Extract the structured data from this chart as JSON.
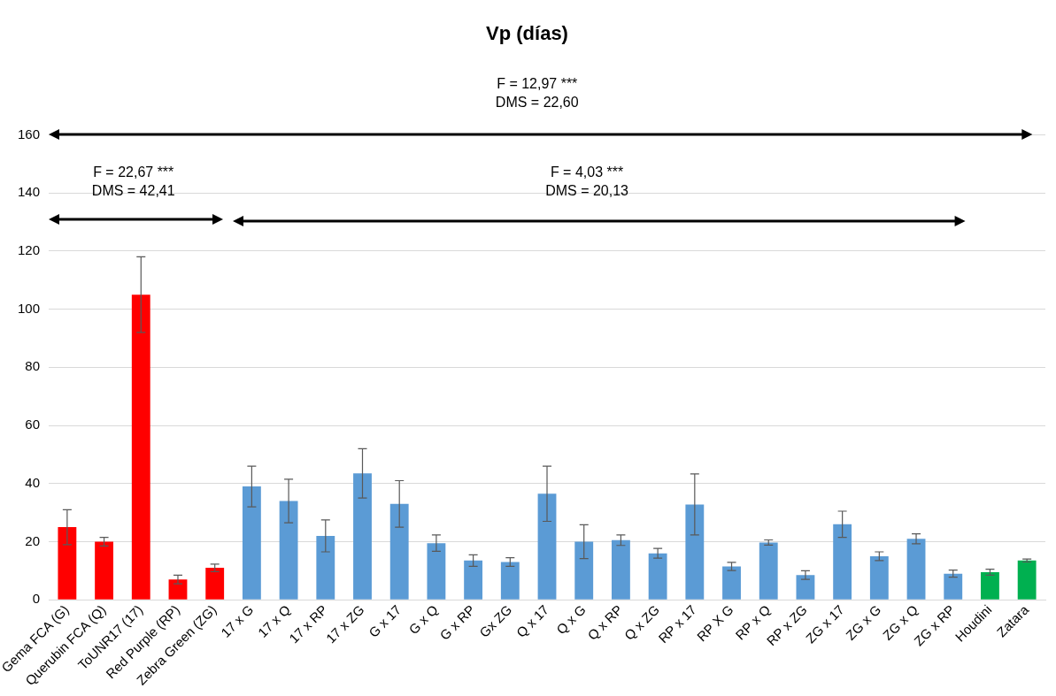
{
  "chart_data": {
    "type": "bar",
    "title": "Vp (días)",
    "categories": [
      "Gema FCA (G)",
      "Querubin FCA (Q)",
      "ToUNR17 (17)",
      "Red Purple (RP)",
      "Zebra Green (ZG)",
      "17 x G",
      "17 x Q",
      "17 x RP",
      "17 x ZG",
      "G x 17",
      "G x Q",
      "G x RP",
      "Gx ZG",
      "Q x 17",
      "Q x G",
      "Q x RP",
      "Q x ZG",
      "RP x 17",
      "RP X G",
      "RP x Q",
      "RP x ZG",
      "ZG x 17",
      "ZG x G",
      "ZG x Q",
      "ZG x RP",
      "Houdini",
      "Zatara"
    ],
    "values": [
      25,
      20,
      105,
      7,
      11,
      39,
      34,
      22,
      43.5,
      33,
      19.5,
      13.5,
      13,
      36.5,
      20,
      20.5,
      16,
      32.8,
      11.5,
      19.7,
      8.5,
      26,
      15,
      21,
      9,
      9.5,
      13.5
    ],
    "errors": [
      6,
      1.5,
      13,
      1.5,
      1.3,
      7,
      7.5,
      5.5,
      8.5,
      8,
      2.8,
      2,
      1.5,
      9.5,
      5.8,
      1.8,
      1.7,
      10.5,
      1.4,
      0.9,
      1.5,
      4.5,
      1.5,
      1.7,
      1.2,
      1,
      0.5
    ],
    "colors": [
      "#ff0000",
      "#ff0000",
      "#ff0000",
      "#ff0000",
      "#ff0000",
      "#5b9bd5",
      "#5b9bd5",
      "#5b9bd5",
      "#5b9bd5",
      "#5b9bd5",
      "#5b9bd5",
      "#5b9bd5",
      "#5b9bd5",
      "#5b9bd5",
      "#5b9bd5",
      "#5b9bd5",
      "#5b9bd5",
      "#5b9bd5",
      "#5b9bd5",
      "#5b9bd5",
      "#5b9bd5",
      "#5b9bd5",
      "#5b9bd5",
      "#5b9bd5",
      "#5b9bd5",
      "#00b050",
      "#00b050"
    ],
    "ylim": [
      0,
      160
    ],
    "yticks": [
      0,
      20,
      40,
      60,
      80,
      100,
      120,
      140,
      160
    ],
    "grid": "y",
    "annotations": [
      "F = 12,97 ***\nDMS = 22,60",
      "F = 22,67 ***\nDMS = 42,41",
      "F = 4,03 ***\nDMS = 20,13"
    ]
  }
}
